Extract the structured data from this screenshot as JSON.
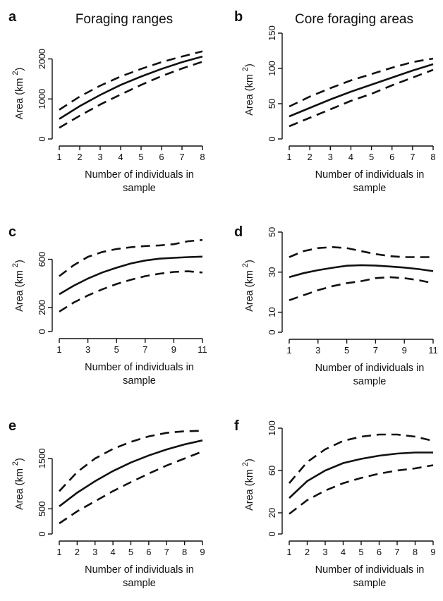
{
  "column_titles": [
    "Foraging ranges",
    "Core foraging areas"
  ],
  "chart_data": [
    {
      "panel": "a",
      "type": "line",
      "xlabel": "Number of individuals in sample",
      "ylabel": "Area (km 2)",
      "x": [
        1,
        2,
        3,
        4,
        5,
        6,
        7,
        8
      ],
      "xticks": [
        1,
        2,
        3,
        4,
        5,
        6,
        7,
        8
      ],
      "yticks": [
        0,
        1000,
        2000
      ],
      "xlim": [
        1,
        8
      ],
      "ylim": [
        0,
        2450
      ],
      "series": [
        {
          "role": "mean",
          "style": "solid",
          "values": [
            500,
            820,
            1100,
            1350,
            1560,
            1750,
            1920,
            2060
          ]
        },
        {
          "role": "upper",
          "style": "dashed",
          "values": [
            730,
            1060,
            1330,
            1560,
            1750,
            1920,
            2060,
            2190
          ]
        },
        {
          "role": "lower",
          "style": "dashed",
          "values": [
            280,
            580,
            860,
            1110,
            1350,
            1570,
            1760,
            1930
          ]
        }
      ]
    },
    {
      "panel": "b",
      "type": "line",
      "xlabel": "Number of individuals in sample",
      "ylabel": "Area (km 2)",
      "x": [
        1,
        2,
        3,
        4,
        5,
        6,
        7,
        8
      ],
      "xticks": [
        1,
        2,
        3,
        4,
        5,
        6,
        7,
        8
      ],
      "yticks": [
        0,
        50,
        100,
        150
      ],
      "xlim": [
        1,
        8
      ],
      "ylim": [
        0,
        150
      ],
      "series": [
        {
          "role": "mean",
          "style": "solid",
          "values": [
            32,
            44,
            56,
            67,
            77,
            87,
            97,
            106
          ]
        },
        {
          "role": "upper",
          "style": "dashed",
          "values": [
            46,
            60,
            72,
            83,
            92,
            101,
            109,
            114
          ]
        },
        {
          "role": "lower",
          "style": "dashed",
          "values": [
            18,
            30,
            42,
            54,
            64,
            76,
            87,
            98
          ]
        }
      ]
    },
    {
      "panel": "c",
      "type": "line",
      "xlabel": "Number of individuals in sample",
      "ylabel": "Area (km 2)",
      "x": [
        1,
        2,
        3,
        4,
        5,
        6,
        7,
        8,
        9,
        10,
        11
      ],
      "xticks": [
        1,
        3,
        5,
        7,
        9,
        11
      ],
      "yticks": [
        0,
        200,
        600
      ],
      "xlim": [
        1,
        11
      ],
      "ylim": [
        0,
        820
      ],
      "series": [
        {
          "role": "mean",
          "style": "solid",
          "values": [
            310,
            380,
            440,
            490,
            530,
            565,
            590,
            605,
            612,
            618,
            622
          ]
        },
        {
          "role": "upper",
          "style": "dashed",
          "values": [
            460,
            550,
            620,
            660,
            685,
            700,
            710,
            715,
            725,
            750,
            760
          ]
        },
        {
          "role": "lower",
          "style": "dashed",
          "values": [
            165,
            240,
            300,
            350,
            395,
            430,
            460,
            480,
            495,
            500,
            490
          ]
        }
      ]
    },
    {
      "panel": "d",
      "type": "line",
      "xlabel": "Number of individuals in sample",
      "ylabel": "Area (km 2)",
      "x": [
        1,
        2,
        3,
        4,
        5,
        6,
        7,
        8,
        9,
        10,
        11
      ],
      "xticks": [
        1,
        3,
        5,
        7,
        9,
        11
      ],
      "yticks": [
        0,
        10,
        30,
        50
      ],
      "xlim": [
        1,
        11
      ],
      "ylim": [
        0,
        50
      ],
      "series": [
        {
          "role": "mean",
          "style": "solid",
          "values": [
            27.5,
            29.5,
            31,
            32.2,
            33.2,
            33.5,
            33.3,
            32.8,
            32.3,
            31.5,
            30.5
          ]
        },
        {
          "role": "upper",
          "style": "dashed",
          "values": [
            37.5,
            40.5,
            42,
            42.5,
            42,
            40.5,
            39,
            38,
            37.5,
            37.5,
            37.5
          ]
        },
        {
          "role": "lower",
          "style": "dashed",
          "values": [
            16,
            18.5,
            21,
            23,
            24.5,
            25.5,
            27,
            27.5,
            27,
            26,
            24.5
          ]
        }
      ]
    },
    {
      "panel": "e",
      "type": "line",
      "xlabel": "Number of individuals in sample",
      "ylabel": "Area (km 2)",
      "x": [
        1,
        2,
        3,
        4,
        5,
        6,
        7,
        8,
        9
      ],
      "xticks": [
        1,
        2,
        3,
        4,
        5,
        6,
        7,
        8,
        9
      ],
      "yticks": [
        0,
        500,
        1500
      ],
      "xlim": [
        1,
        9
      ],
      "ylim": [
        0,
        2130
      ],
      "series": [
        {
          "role": "mean",
          "style": "solid",
          "values": [
            550,
            820,
            1050,
            1250,
            1420,
            1560,
            1680,
            1780,
            1860
          ]
        },
        {
          "role": "upper",
          "style": "dashed",
          "values": [
            850,
            1230,
            1500,
            1690,
            1830,
            1940,
            2010,
            2040,
            2050
          ]
        },
        {
          "role": "lower",
          "style": "dashed",
          "values": [
            210,
            450,
            650,
            850,
            1030,
            1200,
            1360,
            1500,
            1640
          ]
        }
      ]
    },
    {
      "panel": "f",
      "type": "line",
      "xlabel": "Number of individuals in sample",
      "ylabel": "Area (km 2)",
      "x": [
        1,
        2,
        3,
        4,
        5,
        6,
        7,
        8,
        9
      ],
      "xticks": [
        1,
        2,
        3,
        4,
        5,
        6,
        7,
        8,
        9
      ],
      "yticks": [
        0,
        20,
        60,
        100
      ],
      "xlim": [
        1,
        9
      ],
      "ylim": [
        0,
        100
      ],
      "series": [
        {
          "role": "mean",
          "style": "solid",
          "values": [
            34,
            50,
            60,
            67,
            71,
            74,
            76,
            77,
            77
          ]
        },
        {
          "role": "upper",
          "style": "dashed",
          "values": [
            48,
            68,
            80,
            88,
            92,
            94,
            94,
            92,
            88
          ]
        },
        {
          "role": "lower",
          "style": "dashed",
          "values": [
            19,
            32,
            41,
            48,
            53,
            57,
            60,
            62,
            65
          ]
        }
      ]
    }
  ]
}
